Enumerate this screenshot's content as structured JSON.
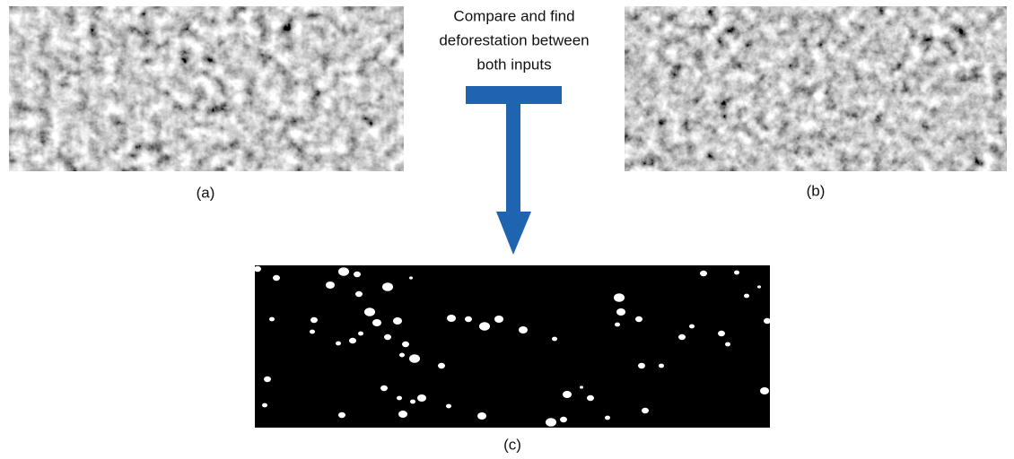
{
  "instruction": {
    "lines": [
      "Compare and find",
      "deforestation between",
      "both inputs"
    ]
  },
  "panels": [
    {
      "label": "(a)"
    },
    {
      "label": "(b)"
    },
    {
      "label": "(c)"
    }
  ]
}
